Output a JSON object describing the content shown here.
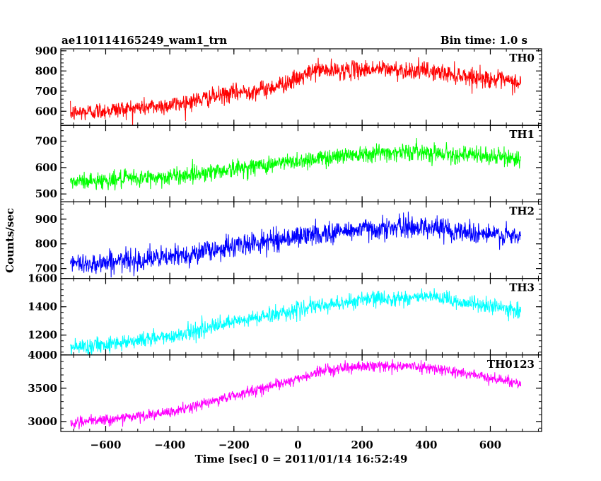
{
  "header": {
    "title": "ae110114165249_wam1_trn",
    "bin_time": "Bin time: 1.0 s"
  },
  "chart_data": {
    "type": "line",
    "xlabel": "Time [sec] 0 = 2011/01/14 16:52:49",
    "ylabel": "Counts/sec",
    "xlim": [
      -740,
      760
    ],
    "x_ticks": [
      -600,
      -400,
      -200,
      0,
      200,
      400,
      600
    ],
    "x_range_data": [
      -710,
      695
    ],
    "bin_time_s": 1.0,
    "panels": [
      {
        "name": "TH0",
        "color": "#ff0000",
        "ylim": [
          530,
          910
        ],
        "y_ticks": [
          600,
          700,
          800,
          900
        ],
        "trend": [
          [
            -710,
            590
          ],
          [
            -400,
            630
          ],
          [
            -200,
            690
          ],
          [
            -100,
            710
          ],
          [
            0,
            760
          ],
          [
            60,
            810
          ],
          [
            100,
            800
          ],
          [
            250,
            810
          ],
          [
            400,
            800
          ],
          [
            550,
            770
          ],
          [
            695,
            740
          ]
        ],
        "noise": 40
      },
      {
        "name": "TH1",
        "color": "#00ff00",
        "ylim": [
          470,
          760
        ],
        "y_ticks": [
          500,
          600,
          700
        ],
        "trend": [
          [
            -710,
            545
          ],
          [
            -400,
            565
          ],
          [
            -200,
            595
          ],
          [
            0,
            625
          ],
          [
            200,
            655
          ],
          [
            400,
            660
          ],
          [
            550,
            645
          ],
          [
            695,
            635
          ]
        ],
        "noise": 30
      },
      {
        "name": "TH2",
        "color": "#0000ff",
        "ylim": [
          660,
          970
        ],
        "y_ticks": [
          700,
          800,
          900
        ],
        "trend": [
          [
            -710,
            715
          ],
          [
            -400,
            745
          ],
          [
            -200,
            790
          ],
          [
            0,
            830
          ],
          [
            200,
            860
          ],
          [
            400,
            870
          ],
          [
            550,
            845
          ],
          [
            695,
            825
          ]
        ],
        "noise": 40
      },
      {
        "name": "TH3",
        "color": "#00ffff",
        "ylim": [
          1060,
          1600
        ],
        "y_ticks": [
          1200,
          1400,
          1600
        ],
        "trend": [
          [
            -710,
            1110
          ],
          [
            -400,
            1190
          ],
          [
            -200,
            1290
          ],
          [
            0,
            1380
          ],
          [
            200,
            1450
          ],
          [
            400,
            1470
          ],
          [
            550,
            1420
          ],
          [
            695,
            1370
          ]
        ],
        "noise": 50
      },
      {
        "name": "TH0123",
        "color": "#ff00ff",
        "ylim": [
          2850,
          4000
        ],
        "y_ticks": [
          3000,
          3500,
          4000
        ],
        "trend": [
          [
            -710,
            2970
          ],
          [
            -400,
            3130
          ],
          [
            -200,
            3390
          ],
          [
            0,
            3640
          ],
          [
            100,
            3790
          ],
          [
            250,
            3840
          ],
          [
            400,
            3820
          ],
          [
            550,
            3700
          ],
          [
            695,
            3570
          ]
        ],
        "noise": 70
      }
    ]
  }
}
